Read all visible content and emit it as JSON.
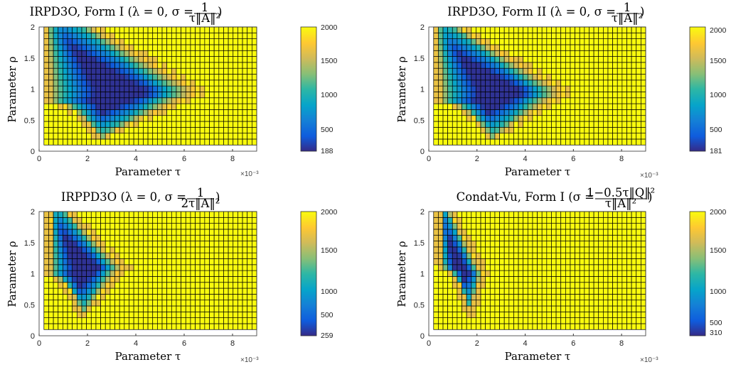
{
  "chart_data": [
    {
      "type": "heatmap",
      "title": "IRPD3O, Form I (λ = 0,  σ = 1/(τ‖A‖²))",
      "title_main": "IRPD3O, Form I (λ = 0,  σ = ",
      "frac_num": "1",
      "frac_den": "τ‖A‖²",
      "title_close": ")",
      "xlabel": "Parameter τ",
      "ylabel": "Parameter ρ",
      "x_multiplier": "×10⁻³",
      "xlim": [
        0,
        0.009
      ],
      "ylim": [
        0,
        2
      ],
      "x_ticks": [
        "0",
        "2",
        "4",
        "6",
        "8"
      ],
      "y_ticks": [
        "0",
        "0.5",
        "1",
        "1.5",
        "2"
      ],
      "colorbar_min": 188,
      "colorbar_max": 2000,
      "colorbar_ticks": [
        "2000",
        "1500",
        "1000",
        "500",
        "188"
      ],
      "colormap": "parula",
      "cell_value_outside_region": 2000,
      "convergent_region": {
        "tip_tau": 0.0069,
        "tip_rho": 0.95,
        "lower_left_tau": 0.00035,
        "lower_left_rho": 0.78,
        "base_tau": 0.0025,
        "base_rho": 0.2,
        "top_tau": [
          0.0003,
          0.0023
        ],
        "top_rho": 2.0
      }
    },
    {
      "type": "heatmap",
      "title": "IRPD3O, Form II (λ = 0,  σ = 1/(τ‖A‖²))",
      "title_main": "IRPD3O, Form II (λ = 0,  σ = ",
      "frac_num": "1",
      "frac_den": "τ‖A‖²",
      "title_close": ")",
      "xlabel": "Parameter τ",
      "ylabel": "Parameter ρ",
      "x_multiplier": "×10⁻³",
      "xlim": [
        0,
        0.009
      ],
      "ylim": [
        0,
        2
      ],
      "x_ticks": [
        "0",
        "2",
        "4",
        "6",
        "8"
      ],
      "y_ticks": [
        "0",
        "0.5",
        "1",
        "1.5",
        "2"
      ],
      "colorbar_min": 181,
      "colorbar_max": 2000,
      "colorbar_ticks": [
        "2000",
        "1500",
        "1000",
        "500",
        "181"
      ],
      "colormap": "parula",
      "cell_value_outside_region": 2000,
      "convergent_region": {
        "tip_tau": 0.0059,
        "tip_rho": 0.95,
        "lower_left_tau": 0.0004,
        "lower_left_rho": 0.78,
        "base_tau": 0.0026,
        "base_rho": 0.2,
        "top_tau": [
          0.0003,
          0.0013
        ],
        "top_rho": 2.0
      }
    },
    {
      "type": "heatmap",
      "title": "IRPPD3O (λ = 0,  σ = 1/(2τ‖A‖²))",
      "title_main": "IRPPD3O (λ = 0,  σ = ",
      "frac_num": "1",
      "frac_den": "2τ‖A‖²",
      "title_close": ")",
      "xlabel": "Parameter τ",
      "ylabel": "Parameter ρ",
      "x_multiplier": "×10⁻³",
      "xlim": [
        0,
        0.009
      ],
      "ylim": [
        0,
        2
      ],
      "x_ticks": [
        "0",
        "2",
        "4",
        "6",
        "8"
      ],
      "y_ticks": [
        "0",
        "0.5",
        "1",
        "1.5",
        "2"
      ],
      "colorbar_min": 259,
      "colorbar_max": 2000,
      "colorbar_ticks": [
        "2000",
        "1500",
        "1000",
        "500",
        "259"
      ],
      "colormap": "parula",
      "cell_value_outside_region": 2000,
      "convergent_region": {
        "tip_tau": 0.0036,
        "tip_rho": 1.1,
        "lower_left_tau": 0.0004,
        "lower_left_rho": 0.95,
        "base_tau": 0.0018,
        "base_rho": 0.35,
        "top_tau": [
          0.0005,
          0.0012
        ],
        "top_rho": 2.0
      }
    },
    {
      "type": "heatmap",
      "title": "Condat-Vu, Form I (σ = (1−0.5τ‖Q‖²)/(τ‖A‖²))",
      "title_main": "Condat-Vu, Form I (σ = ",
      "frac_num": "1−0.5τ‖Q‖²",
      "frac_den": "τ‖A‖²",
      "title_close": ")",
      "xlabel": "Parameter τ",
      "ylabel": "Parameter ρ",
      "x_multiplier": "×10⁻³",
      "xlim": [
        0,
        0.009
      ],
      "ylim": [
        0,
        2
      ],
      "x_ticks": [
        "0",
        "2",
        "4",
        "6",
        "8"
      ],
      "y_ticks": [
        "0",
        "0.5",
        "1",
        "1.5",
        "2"
      ],
      "colorbar_min": 310,
      "colorbar_max": 2000,
      "colorbar_ticks": [
        "2000",
        "1500",
        "1000",
        "500",
        "310"
      ],
      "colormap": "parula",
      "cell_value_outside_region": 2000,
      "convergent_region": {
        "tip_tau": 0.0023,
        "tip_rho": 1.0,
        "lower_left_tau": 0.0005,
        "lower_left_rho": 1.1,
        "base_tau": 0.0017,
        "base_rho": 0.4,
        "top_tau": [
          0.0005,
          0.0009
        ],
        "top_rho": 2.0
      }
    }
  ]
}
